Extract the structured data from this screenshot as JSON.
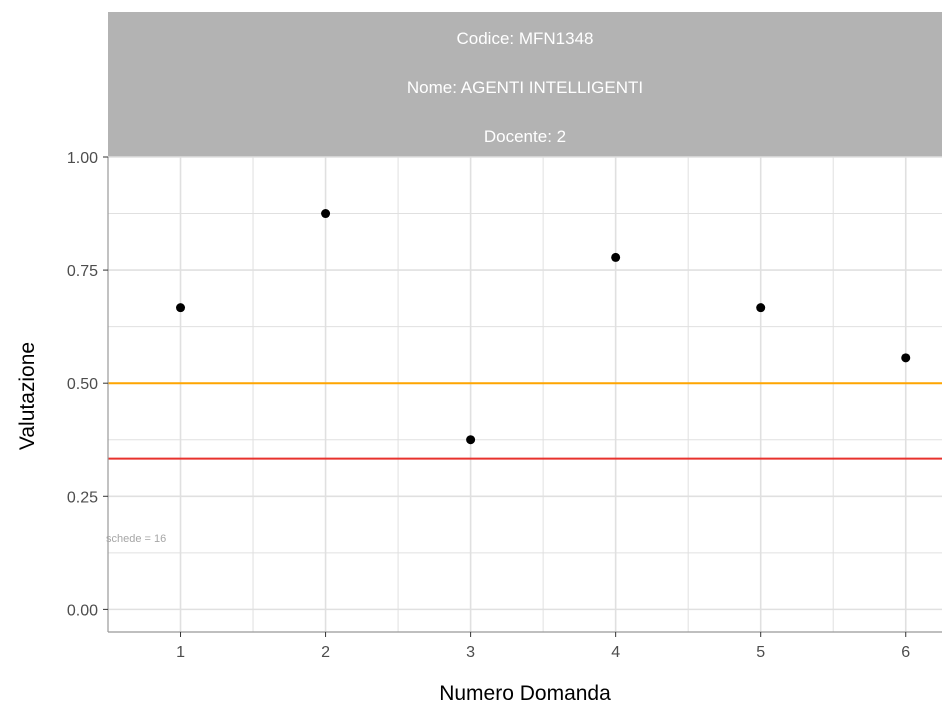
{
  "chart_data": {
    "type": "scatter",
    "strip_labels": [
      "Codice: MFN1348",
      "Nome: AGENTI INTELLIGENTI",
      "Docente: 2"
    ],
    "xlabel": "Numero Domanda",
    "ylabel": "Valutazione",
    "x": [
      1,
      2,
      3,
      4,
      5,
      6
    ],
    "y": [
      0.667,
      0.875,
      0.375,
      0.778,
      0.667,
      0.556
    ],
    "x_ticks": [
      1,
      2,
      3,
      4,
      5,
      6
    ],
    "y_ticks": [
      "0.00",
      "0.25",
      "0.50",
      "0.75",
      "1.00"
    ],
    "xlim": [
      0.5,
      6.25
    ],
    "ylim": [
      -0.05,
      1.0
    ],
    "hlines": [
      {
        "y": 0.5,
        "color": "#ffa500"
      },
      {
        "y": 0.3333,
        "color": "#e8322d"
      }
    ],
    "annotation": {
      "text": "schede =  16",
      "x": 0.5,
      "y": 0.166
    },
    "grid": true,
    "colors": {
      "strip_bg": "#b3b3b3",
      "grid": "#e0e0e0",
      "point": "#000000",
      "axis": "#999999"
    }
  }
}
